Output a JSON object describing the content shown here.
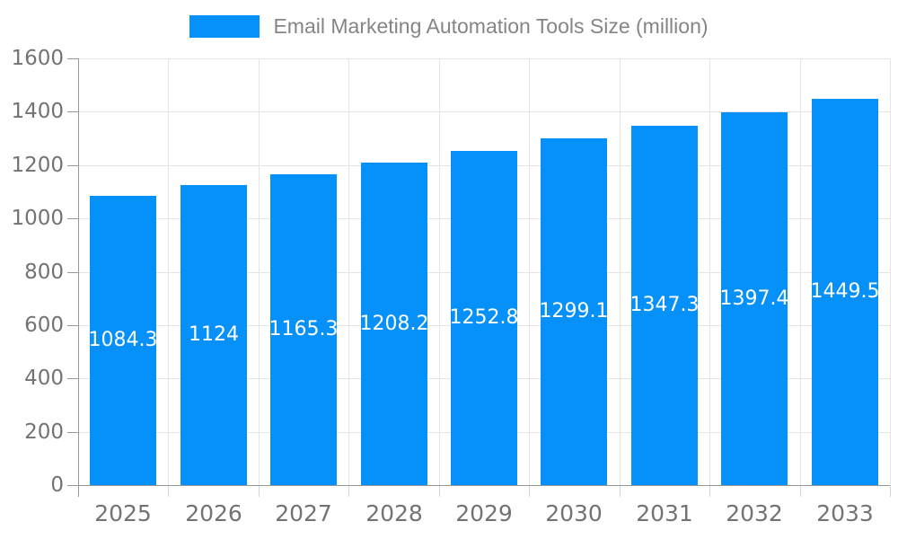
{
  "legend": {
    "label": "Email Marketing Automation Tools Size (million)"
  },
  "colors": {
    "bar": "#0690fa",
    "grid_line": "#e4e4e4",
    "axis_line": "#999999",
    "minor_tick": "#d5d5d5",
    "axis_label_text": "#737373",
    "legend_text": "#858585",
    "value_label_text": "#ffffff",
    "background": "#ffffff"
  },
  "chart_data": {
    "type": "bar",
    "title": "Email Marketing Automation Tools Size (million)",
    "categories": [
      "2025",
      "2026",
      "2027",
      "2028",
      "2029",
      "2030",
      "2031",
      "2032",
      "2033"
    ],
    "series": [
      {
        "name": "Email Marketing Automation Tools Size (million)",
        "values": [
          1084.3,
          1124,
          1165.3,
          1208.2,
          1252.8,
          1299.1,
          1347.3,
          1397.4,
          1449.5
        ],
        "value_labels": [
          "1084.3",
          "1124",
          "1165.3",
          "1208.2",
          "1252.8",
          "1299.1",
          "1347.3",
          "1397.4",
          "1449.5"
        ]
      }
    ],
    "xlabel": "",
    "ylabel": "",
    "ylim": [
      0,
      1600
    ],
    "y_ticks": [
      0,
      200,
      400,
      600,
      800,
      1000,
      1200,
      1400,
      1600
    ],
    "grid": true,
    "legend_position": "top-center",
    "value_label_position": "middle-of-bar"
  }
}
